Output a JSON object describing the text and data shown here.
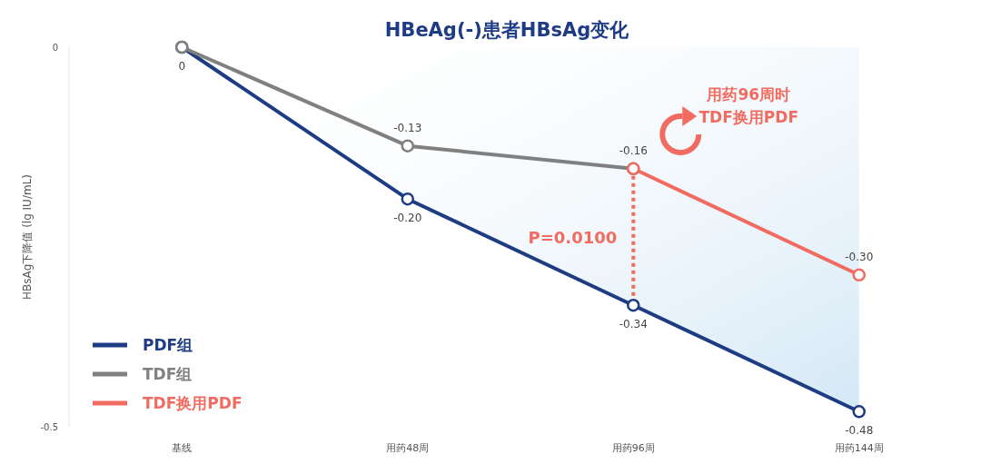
{
  "chart_data": {
    "type": "line",
    "title": "HBeAg(-)患者HBsAg变化",
    "ylabel": "HBsAg下降值 (lg IU/mL)",
    "categories": [
      "基线",
      "用药48周",
      "用药96周",
      "用药144周"
    ],
    "series": [
      {
        "name": "PDF组",
        "type": "area",
        "color": "#1d3c84",
        "values": [
          0,
          -0.2,
          -0.34,
          -0.48
        ],
        "value_labels": [
          "0",
          "-0.20",
          "-0.34",
          "-0.48"
        ]
      },
      {
        "name": "TDF组",
        "color": "#808080",
        "values": [
          0,
          -0.13,
          -0.16,
          null
        ],
        "value_labels": [
          null,
          "-0.13",
          "-0.16",
          null
        ]
      },
      {
        "name": "TDF换用PDF",
        "color": "#f26b60",
        "values": [
          null,
          null,
          -0.16,
          -0.3
        ],
        "value_labels": [
          null,
          null,
          null,
          "-0.30"
        ]
      }
    ],
    "ylim": [
      -0.5,
      0
    ],
    "yticks": [
      0,
      -0.5
    ],
    "legend": "bottom left",
    "marker": "circle",
    "line_style": "solid",
    "annotations": [
      "P=0.0100",
      "用药96周时\nTDF换用PDF"
    ]
  }
}
